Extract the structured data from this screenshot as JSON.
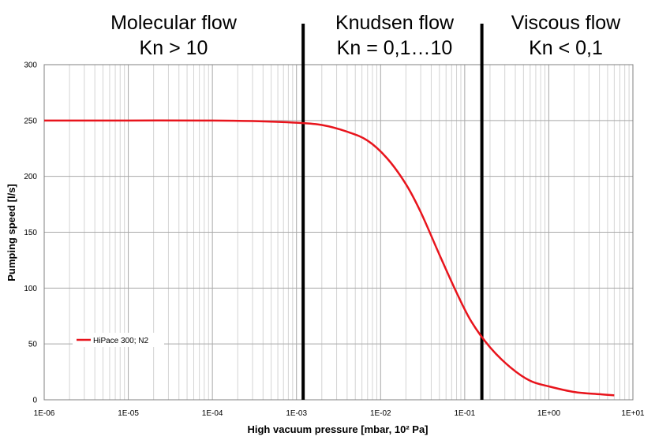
{
  "chart_data": {
    "type": "line",
    "title": "",
    "xlabel": "High vacuum pressure [mbar, 10² Pa]",
    "ylabel": "Pumping speed [l/s]",
    "xscale": "log",
    "xlim": [
      1e-06,
      10
    ],
    "ylim": [
      0,
      300
    ],
    "x_tick_labels": [
      "1E-06",
      "1E-05",
      "1E-04",
      "1E-03",
      "1E-02",
      "1E-01",
      "1E+00",
      "1E+01"
    ],
    "y_tick_labels": [
      "0",
      "50",
      "100",
      "150",
      "200",
      "250",
      "300"
    ],
    "grid": true,
    "legend": "bottom-left",
    "regions": [
      {
        "line1": "Molecular flow",
        "line2": "Kn > 10"
      },
      {
        "line1": "Knudsen flow",
        "line2": "Kn = 0,1…10"
      },
      {
        "line1": "Viscous flow",
        "line2": "Kn < 0,1"
      }
    ],
    "boundaries": [
      0.0012,
      0.16
    ],
    "series": [
      {
        "name": "HiPace 300; N2",
        "color": "#e8141c",
        "x": [
          1e-06,
          1e-05,
          0.0001,
          0.0003,
          0.001,
          0.002,
          0.004,
          0.007,
          0.012,
          0.02,
          0.03,
          0.05,
          0.08,
          0.12,
          0.2,
          0.35,
          0.6,
          1,
          2,
          4,
          6
        ],
        "y": [
          250,
          250,
          250,
          249.5,
          248,
          246,
          240,
          232,
          216,
          193,
          168,
          130,
          96,
          70,
          47,
          29,
          17,
          12,
          7,
          5,
          4
        ]
      }
    ]
  }
}
